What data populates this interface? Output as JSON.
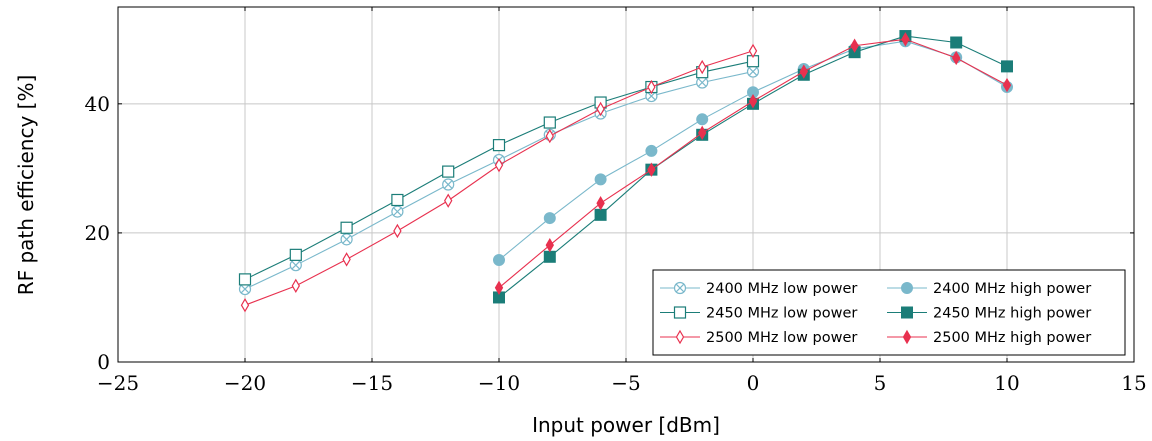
{
  "chart_data": {
    "type": "line",
    "xlabel": "Input power [dBm]",
    "ylabel": "RF path efficiency [%]",
    "xlim": [
      -25,
      15
    ],
    "ylim": [
      0,
      55
    ],
    "xticks": [
      -25,
      -20,
      -15,
      -10,
      -5,
      0,
      5,
      10,
      15
    ],
    "yticks": [
      0,
      20,
      40
    ],
    "xtick_labels": [
      "−25",
      "−20",
      "−15",
      "−10",
      "−5",
      "0",
      "5",
      "10",
      "15"
    ],
    "ytick_labels": [
      "0",
      "20",
      "40"
    ],
    "grid": true,
    "legend_position": "bottom-right",
    "series": [
      {
        "name": "2400 MHz low power",
        "color": "#7ab8cb",
        "marker": "circle-x",
        "x": [
          -20,
          -18,
          -16,
          -14,
          -12,
          -10,
          -8,
          -6,
          -4,
          -2,
          0
        ],
        "y": [
          11.3,
          15.0,
          19.0,
          23.3,
          27.5,
          31.3,
          35.2,
          38.5,
          41.2,
          43.3,
          45.0
        ]
      },
      {
        "name": "2450 MHz low power",
        "color": "#1b7d78",
        "marker": "square-open",
        "x": [
          -20,
          -18,
          -16,
          -14,
          -12,
          -10,
          -8,
          -6,
          -4,
          -2,
          0
        ],
        "y": [
          12.8,
          16.6,
          20.8,
          25.1,
          29.5,
          33.6,
          37.1,
          40.2,
          42.6,
          44.9,
          46.6
        ]
      },
      {
        "name": "2500 MHz low power",
        "color": "#e8314f",
        "marker": "diamond-open",
        "x": [
          -20,
          -18,
          -16,
          -14,
          -12,
          -10,
          -8,
          -6,
          -4,
          -2,
          0
        ],
        "y": [
          8.8,
          11.8,
          15.9,
          20.3,
          25.0,
          30.5,
          35.0,
          39.2,
          42.6,
          45.7,
          48.2
        ]
      },
      {
        "name": "2400 MHz high power",
        "color": "#7ab8cb",
        "marker": "circle-filled",
        "x": [
          -10,
          -8,
          -6,
          -4,
          -2,
          0,
          2,
          4,
          6,
          8,
          10
        ],
        "y": [
          15.8,
          22.3,
          28.3,
          32.7,
          37.6,
          41.8,
          45.4,
          48.5,
          49.7,
          47.2,
          42.6
        ]
      },
      {
        "name": "2450 MHz high power",
        "color": "#1b7d78",
        "marker": "square-filled",
        "x": [
          -10,
          -8,
          -6,
          -4,
          -2,
          0,
          2,
          4,
          6,
          8,
          10
        ],
        "y": [
          10.0,
          16.3,
          22.8,
          29.8,
          35.2,
          40.0,
          44.5,
          48.0,
          50.5,
          49.5,
          45.8
        ]
      },
      {
        "name": "2500 MHz high power",
        "color": "#e8314f",
        "marker": "diamond-filled",
        "x": [
          -10,
          -8,
          -6,
          -4,
          -2,
          0,
          2,
          4,
          6,
          8,
          10
        ],
        "y": [
          11.5,
          18.1,
          24.6,
          29.8,
          35.5,
          40.4,
          45.0,
          49.0,
          50.0,
          47.1,
          42.9
        ]
      }
    ],
    "legend_order": [
      0,
      3,
      1,
      4,
      2,
      5
    ]
  }
}
